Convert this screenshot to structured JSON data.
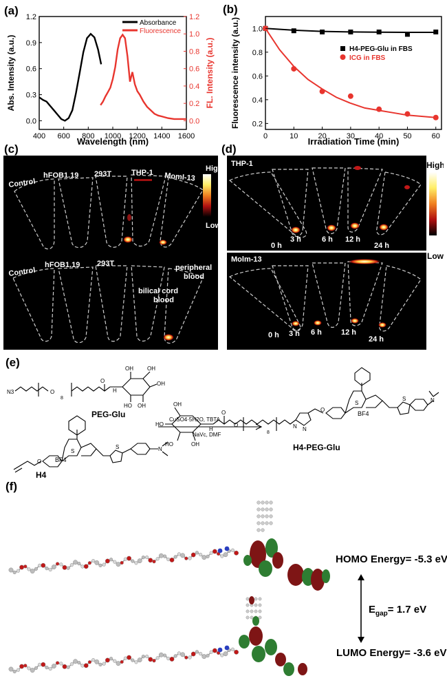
{
  "panels": {
    "a": "(a)",
    "b": "(b)",
    "c": "(c)",
    "d": "(d)",
    "e": "(e)",
    "f": "(f)"
  },
  "chart_data": [
    {
      "type": "line",
      "xlabel": "Wavelength (nm)",
      "ylabel": "Abs. Intensity (a.u.)",
      "ylabel_right": "FL. Intensity (a.u.)",
      "xlim": [
        400,
        1600
      ],
      "ylim": [
        -0.1,
        1.2
      ],
      "ylim_right": [
        -0.1,
        1.2
      ],
      "x_ticks": [
        400,
        600,
        800,
        1000,
        1200,
        1400,
        1600
      ],
      "y_ticks": [
        0.0,
        0.3,
        0.6,
        0.9,
        1.2
      ],
      "y_tick_labels": [
        "0.0",
        "0.3",
        "0.6",
        "0.9",
        "1.2"
      ],
      "y_ticks_right": [
        0.0,
        0.2,
        0.4,
        0.6,
        0.8,
        1.0,
        1.2
      ],
      "y_tick_labels_right": [
        "0.0",
        "0.2",
        "0.4",
        "0.6",
        "0.8",
        "1.0",
        "1.2"
      ],
      "legend_position": "top-right",
      "series": [
        {
          "name": "Absorbance",
          "color": "#000000",
          "x": [
            400,
            430,
            460,
            490,
            520,
            550,
            580,
            610,
            640,
            670,
            700,
            730,
            760,
            790,
            820,
            850,
            880,
            905
          ],
          "y": [
            0.27,
            0.24,
            0.22,
            0.17,
            0.12,
            0.07,
            0.02,
            0.0,
            0.03,
            0.12,
            0.32,
            0.55,
            0.79,
            0.95,
            1.0,
            0.96,
            0.82,
            0.65
          ]
        },
        {
          "name": "Fluorescence",
          "color": "#e8352e",
          "x": [
            900,
            920,
            940,
            960,
            980,
            1000,
            1020,
            1040,
            1060,
            1080,
            1100,
            1120,
            1140,
            1160,
            1180,
            1200,
            1220,
            1250,
            1280,
            1310,
            1340,
            1370,
            1400,
            1450,
            1500,
            1550,
            1600
          ],
          "y": [
            0.18,
            0.22,
            0.28,
            0.33,
            0.38,
            0.48,
            0.62,
            0.82,
            0.95,
            0.99,
            0.95,
            0.74,
            0.45,
            0.56,
            0.42,
            0.34,
            0.3,
            0.22,
            0.16,
            0.12,
            0.08,
            0.06,
            0.05,
            0.03,
            0.02,
            0.02,
            0.02
          ]
        }
      ]
    },
    {
      "type": "scatter",
      "xlabel": "Irradiation Time (min)",
      "ylabel": "Fluorescence intensity (a.u.)",
      "xlim": [
        0,
        62
      ],
      "ylim": [
        0.15,
        1.1
      ],
      "x_ticks": [
        0,
        10,
        20,
        30,
        40,
        50,
        60
      ],
      "y_ticks": [
        0.2,
        0.4,
        0.6,
        0.8,
        1.0
      ],
      "y_tick_labels": [
        "0.2",
        "0.4",
        "0.6",
        "0.8",
        "1.0"
      ],
      "legend_position": "center-right",
      "series": [
        {
          "name": "H4-PEG-Glu in FBS",
          "color": "#000000",
          "marker": "square",
          "x": [
            0,
            10,
            20,
            30,
            40,
            50,
            60
          ],
          "y": [
            1.0,
            0.98,
            0.97,
            0.97,
            0.97,
            0.95,
            0.97
          ],
          "fit_x": [
            0,
            10,
            20,
            30,
            40,
            50,
            60
          ],
          "fit_y": [
            1.0,
            0.985,
            0.975,
            0.97,
            0.968,
            0.967,
            0.967
          ]
        },
        {
          "name": "ICG in FBS",
          "color": "#e8352e",
          "marker": "circle",
          "x": [
            0,
            10,
            20,
            30,
            40,
            50,
            60
          ],
          "y": [
            1.0,
            0.66,
            0.47,
            0.43,
            0.32,
            0.28,
            0.25
          ],
          "fit_x": [
            0,
            5,
            10,
            15,
            20,
            25,
            30,
            35,
            40,
            45,
            50,
            55,
            60
          ],
          "fit_y": [
            1.0,
            0.82,
            0.68,
            0.57,
            0.49,
            0.42,
            0.37,
            0.33,
            0.31,
            0.29,
            0.27,
            0.26,
            0.25
          ]
        }
      ]
    }
  ],
  "panel_c": {
    "top_labels": [
      "Control",
      "hFOB1.19",
      "293T",
      "THP-1",
      "MomI-13"
    ],
    "bottom_labels": [
      "Control",
      "hFOB1.19",
      "293T"
    ],
    "bilical_line1": "bilical cord",
    "bilical_line2": "blood",
    "peripheral_line1": "peripheral",
    "peripheral_line2": "blood",
    "scale_high": "High",
    "scale_low": "Low"
  },
  "panel_d": {
    "top_title": "THP-1",
    "bottom_title": "Molm-13",
    "time_labels": [
      "0 h",
      "3 h",
      "6 h",
      "12 h",
      "24 h"
    ],
    "scale_high": "High",
    "scale_low": "Low"
  },
  "panel_e": {
    "peg_glu_label": "PEG-Glu",
    "h4_label": "H4",
    "product_label": "H4-PEG-Glu",
    "conditions_line1": "CuSO4·5H2O, TBTA",
    "conditions_line2": "NaVc, DMF",
    "counter_ion": "BF4",
    "subscript_8": "8",
    "atoms": {
      "N": "N",
      "O": "O",
      "S": "S",
      "OH": "OH",
      "HO": "HO",
      "H": "H",
      "N3": "N3"
    }
  },
  "panel_f": {
    "homo": "HOMO Energy= -5.3 eV",
    "lumo": "LUMO Energy= -3.6 eV",
    "egap": "E",
    "egap_sub": "gap",
    "egap_val": "= 1.7 eV"
  },
  "colors": {
    "red": "#e8352e",
    "molecule_red": "#8b1a1a",
    "molecule_green": "#2f7a2f"
  }
}
